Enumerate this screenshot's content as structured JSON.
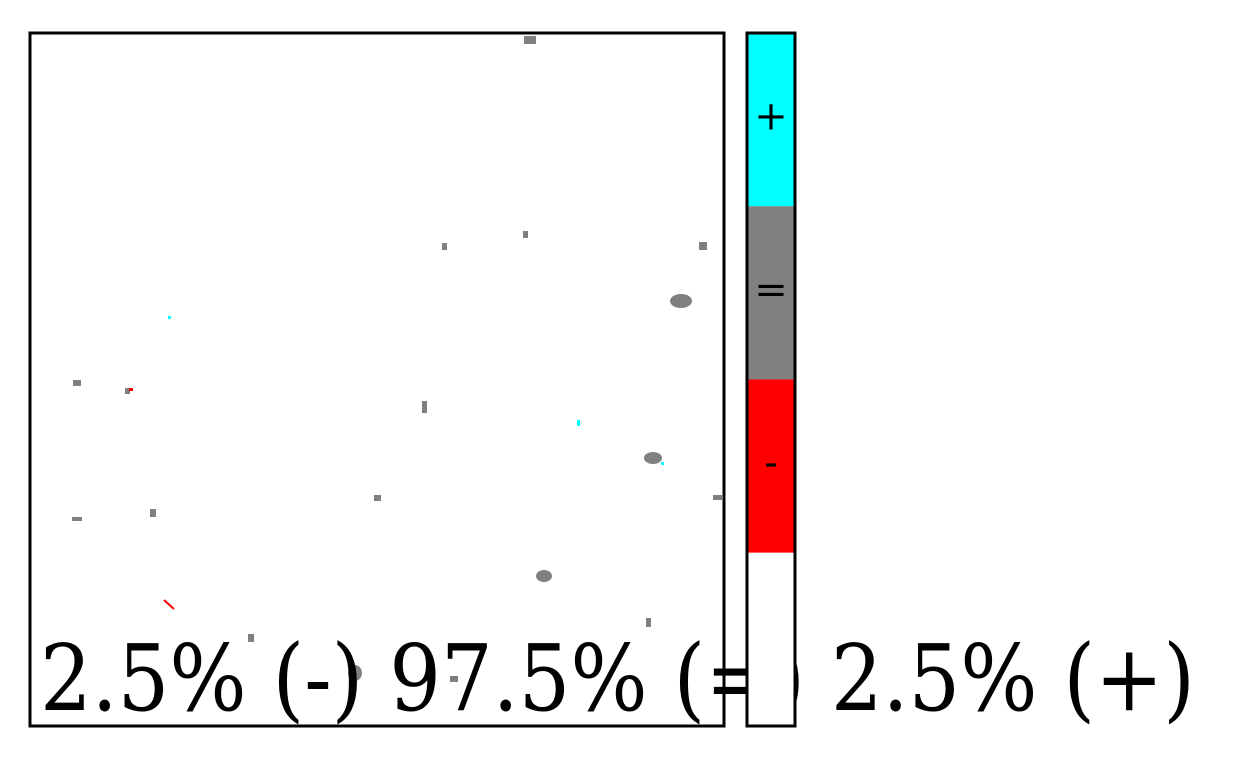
{
  "chart_data": {
    "type": "categorical-map",
    "legend": [
      {
        "label": "+",
        "color": "#00ffff"
      },
      {
        "label": "=",
        "color": "#808080"
      },
      {
        "label": "-",
        "color": "#ff0000"
      }
    ],
    "background_color": "#ffffff",
    "caption": "2.5% (-) 97.5% (=) 2.5% (+)"
  }
}
